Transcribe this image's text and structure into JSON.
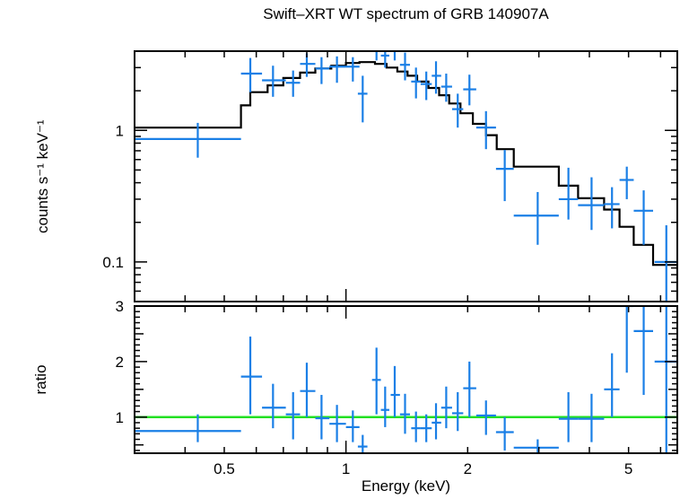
{
  "chart_data": [
    {
      "type": "scatter",
      "panel": "spectrum",
      "title": "Swift–XRT WT spectrum of GRB 140907A",
      "ylabel": "counts s⁻¹ keV⁻¹",
      "xscale": "log",
      "yscale": "log",
      "xlim": [
        0.3,
        6.6
      ],
      "ylim": [
        0.05,
        4.0
      ],
      "ytick_labels": [
        {
          "value": 1,
          "label": "1"
        },
        {
          "value": 0.1,
          "label": "0.1"
        }
      ],
      "colors": {
        "data": "#1a7fe6",
        "model": "#000000"
      },
      "series": [
        {
          "kind": "data",
          "points": [
            {
              "x": 0.43,
              "xlo": 0.3,
              "xhi": 0.55,
              "y": 0.86,
              "ylo": 0.62,
              "yhi": 1.14
            },
            {
              "x": 0.58,
              "xlo": 0.55,
              "xhi": 0.62,
              "y": 2.7,
              "ylo": 1.95,
              "yhi": 3.55
            },
            {
              "x": 0.66,
              "xlo": 0.62,
              "xhi": 0.71,
              "y": 2.4,
              "ylo": 1.8,
              "yhi": 3.1
            },
            {
              "x": 0.74,
              "xlo": 0.71,
              "xhi": 0.77,
              "y": 2.3,
              "ylo": 1.8,
              "yhi": 2.85
            },
            {
              "x": 0.8,
              "xlo": 0.77,
              "xhi": 0.84,
              "y": 3.2,
              "ylo": 2.55,
              "yhi": 3.85
            },
            {
              "x": 0.87,
              "xlo": 0.84,
              "xhi": 0.91,
              "y": 2.95,
              "ylo": 2.25,
              "yhi": 3.6
            },
            {
              "x": 0.95,
              "xlo": 0.91,
              "xhi": 1.0,
              "y": 3.05,
              "ylo": 2.3,
              "yhi": 3.65
            },
            {
              "x": 1.04,
              "xlo": 1.0,
              "xhi": 1.08,
              "y": 3.05,
              "ylo": 2.35,
              "yhi": 3.6
            },
            {
              "x": 1.1,
              "xlo": 1.07,
              "xhi": 1.13,
              "y": 1.9,
              "ylo": 1.15,
              "yhi": 2.6
            },
            {
              "x": 1.19,
              "xlo": 1.16,
              "xhi": 1.22,
              "y": 4.4,
              "ylo": 3.4,
              "yhi": 5.3
            },
            {
              "x": 1.25,
              "xlo": 1.22,
              "xhi": 1.28,
              "y": 3.7,
              "ylo": 3.0,
              "yhi": 4.4
            },
            {
              "x": 1.32,
              "xlo": 1.29,
              "xhi": 1.36,
              "y": 4.1,
              "ylo": 3.4,
              "yhi": 4.8
            },
            {
              "x": 1.4,
              "xlo": 1.36,
              "xhi": 1.44,
              "y": 3.15,
              "ylo": 2.4,
              "yhi": 3.9
            },
            {
              "x": 1.49,
              "xlo": 1.45,
              "xhi": 1.53,
              "y": 2.35,
              "ylo": 1.75,
              "yhi": 3.0
            },
            {
              "x": 1.58,
              "xlo": 1.53,
              "xhi": 1.63,
              "y": 2.25,
              "ylo": 1.7,
              "yhi": 2.8
            },
            {
              "x": 1.67,
              "xlo": 1.63,
              "xhi": 1.72,
              "y": 2.6,
              "ylo": 1.9,
              "yhi": 3.35
            },
            {
              "x": 1.77,
              "xlo": 1.72,
              "xhi": 1.83,
              "y": 2.15,
              "ylo": 1.65,
              "yhi": 2.7
            },
            {
              "x": 1.89,
              "xlo": 1.83,
              "xhi": 1.95,
              "y": 1.45,
              "ylo": 1.05,
              "yhi": 1.9
            },
            {
              "x": 2.02,
              "xlo": 1.95,
              "xhi": 2.1,
              "y": 2.05,
              "ylo": 1.55,
              "yhi": 2.65
            },
            {
              "x": 2.22,
              "xlo": 2.1,
              "xhi": 2.35,
              "y": 1.05,
              "ylo": 0.72,
              "yhi": 1.4
            },
            {
              "x": 2.47,
              "xlo": 2.35,
              "xhi": 2.6,
              "y": 0.51,
              "ylo": 0.29,
              "yhi": 0.71
            },
            {
              "x": 2.98,
              "xlo": 2.6,
              "xhi": 3.36,
              "y": 0.225,
              "ylo": 0.135,
              "yhi": 0.34
            },
            {
              "x": 3.55,
              "xlo": 3.36,
              "xhi": 3.75,
              "y": 0.3,
              "ylo": 0.21,
              "yhi": 0.52
            },
            {
              "x": 4.05,
              "xlo": 3.75,
              "xhi": 4.35,
              "y": 0.27,
              "ylo": 0.175,
              "yhi": 0.44
            },
            {
              "x": 4.55,
              "xlo": 4.35,
              "xhi": 4.75,
              "y": 0.275,
              "ylo": 0.18,
              "yhi": 0.37
            },
            {
              "x": 4.95,
              "xlo": 4.75,
              "xhi": 5.15,
              "y": 0.42,
              "ylo": 0.3,
              "yhi": 0.53
            },
            {
              "x": 5.45,
              "xlo": 5.15,
              "xhi": 5.75,
              "y": 0.245,
              "ylo": 0.135,
              "yhi": 0.35
            },
            {
              "x": 6.2,
              "xlo": 5.8,
              "xhi": 6.6,
              "y": 0.1,
              "ylo": 0.035,
              "yhi": 0.19
            }
          ]
        },
        {
          "kind": "model",
          "steps": [
            {
              "x0": 0.3,
              "x1": 0.55,
              "y": 1.05
            },
            {
              "x0": 0.55,
              "x1": 0.58,
              "y": 1.55
            },
            {
              "x0": 0.58,
              "x1": 0.64,
              "y": 1.95
            },
            {
              "x0": 0.64,
              "x1": 0.7,
              "y": 2.2
            },
            {
              "x0": 0.7,
              "x1": 0.77,
              "y": 2.5
            },
            {
              "x0": 0.77,
              "x1": 0.84,
              "y": 2.75
            },
            {
              "x0": 0.84,
              "x1": 0.92,
              "y": 2.95
            },
            {
              "x0": 0.92,
              "x1": 1.0,
              "y": 3.1
            },
            {
              "x0": 1.0,
              "x1": 1.08,
              "y": 3.25
            },
            {
              "x0": 1.08,
              "x1": 1.18,
              "y": 3.3
            },
            {
              "x0": 1.18,
              "x1": 1.26,
              "y": 3.2
            },
            {
              "x0": 1.26,
              "x1": 1.34,
              "y": 3.0
            },
            {
              "x0": 1.34,
              "x1": 1.42,
              "y": 2.8
            },
            {
              "x0": 1.42,
              "x1": 1.5,
              "y": 2.6
            },
            {
              "x0": 1.5,
              "x1": 1.6,
              "y": 2.35
            },
            {
              "x0": 1.6,
              "x1": 1.7,
              "y": 2.1
            },
            {
              "x0": 1.7,
              "x1": 1.8,
              "y": 1.85
            },
            {
              "x0": 1.8,
              "x1": 1.92,
              "y": 1.6
            },
            {
              "x0": 1.92,
              "x1": 2.06,
              "y": 1.35
            },
            {
              "x0": 2.06,
              "x1": 2.22,
              "y": 1.12
            },
            {
              "x0": 2.22,
              "x1": 2.36,
              "y": 0.92
            },
            {
              "x0": 2.36,
              "x1": 2.6,
              "y": 0.72
            },
            {
              "x0": 2.6,
              "x1": 3.36,
              "y": 0.53
            },
            {
              "x0": 3.36,
              "x1": 3.75,
              "y": 0.38
            },
            {
              "x0": 3.75,
              "x1": 4.35,
              "y": 0.305
            },
            {
              "x0": 4.35,
              "x1": 4.75,
              "y": 0.25
            },
            {
              "x0": 4.75,
              "x1": 5.15,
              "y": 0.185
            },
            {
              "x0": 5.15,
              "x1": 5.75,
              "y": 0.135
            },
            {
              "x0": 5.75,
              "x1": 6.6,
              "y": 0.095
            }
          ]
        }
      ]
    },
    {
      "type": "scatter",
      "panel": "ratio",
      "xlabel": "Energy (keV)",
      "ylabel": "ratio",
      "xscale": "log",
      "yscale": "linear",
      "xlim": [
        0.3,
        6.6
      ],
      "ylim": [
        0.35,
        3.0
      ],
      "xtick_labels": [
        {
          "value": 0.5,
          "label": "0.5"
        },
        {
          "value": 1,
          "label": "1"
        },
        {
          "value": 2,
          "label": "2"
        },
        {
          "value": 5,
          "label": "5"
        }
      ],
      "ytick_labels": [
        {
          "value": 1,
          "label": "1"
        },
        {
          "value": 2,
          "label": "2"
        },
        {
          "value": 3,
          "label": "3"
        }
      ],
      "reference_line": {
        "y": 1.0,
        "color": "#22e022"
      },
      "colors": {
        "data": "#1a7fe6"
      },
      "series": [
        {
          "kind": "data",
          "points": [
            {
              "x": 0.43,
              "xlo": 0.3,
              "xhi": 0.55,
              "y": 0.75,
              "ylo": 0.55,
              "yhi": 1.05
            },
            {
              "x": 0.58,
              "xlo": 0.55,
              "xhi": 0.62,
              "y": 1.73,
              "ylo": 1.05,
              "yhi": 2.45
            },
            {
              "x": 0.66,
              "xlo": 0.62,
              "xhi": 0.71,
              "y": 1.17,
              "ylo": 0.8,
              "yhi": 1.6
            },
            {
              "x": 0.74,
              "xlo": 0.71,
              "xhi": 0.77,
              "y": 1.05,
              "ylo": 0.6,
              "yhi": 1.45
            },
            {
              "x": 0.8,
              "xlo": 0.77,
              "xhi": 0.84,
              "y": 1.47,
              "ylo": 1.0,
              "yhi": 1.98
            },
            {
              "x": 0.87,
              "xlo": 0.84,
              "xhi": 0.91,
              "y": 0.98,
              "ylo": 0.6,
              "yhi": 1.4
            },
            {
              "x": 0.95,
              "xlo": 0.91,
              "xhi": 1.0,
              "y": 0.88,
              "ylo": 0.55,
              "yhi": 1.22
            },
            {
              "x": 1.04,
              "xlo": 1.0,
              "xhi": 1.08,
              "y": 0.82,
              "ylo": 0.55,
              "yhi": 1.12
            },
            {
              "x": 1.1,
              "xlo": 1.07,
              "xhi": 1.13,
              "y": 0.47,
              "ylo": 0.35,
              "yhi": 0.68
            },
            {
              "x": 1.19,
              "xlo": 1.16,
              "xhi": 1.22,
              "y": 1.67,
              "ylo": 1.05,
              "yhi": 2.25
            },
            {
              "x": 1.25,
              "xlo": 1.22,
              "xhi": 1.28,
              "y": 1.13,
              "ylo": 0.82,
              "yhi": 1.55
            },
            {
              "x": 1.32,
              "xlo": 1.29,
              "xhi": 1.36,
              "y": 1.4,
              "ylo": 1.0,
              "yhi": 1.92
            },
            {
              "x": 1.4,
              "xlo": 1.36,
              "xhi": 1.44,
              "y": 1.05,
              "ylo": 0.7,
              "yhi": 1.42
            },
            {
              "x": 1.49,
              "xlo": 1.45,
              "xhi": 1.53,
              "y": 0.8,
              "ylo": 0.55,
              "yhi": 1.1
            },
            {
              "x": 1.58,
              "xlo": 1.53,
              "xhi": 1.63,
              "y": 0.8,
              "ylo": 0.55,
              "yhi": 1.05
            },
            {
              "x": 1.67,
              "xlo": 1.63,
              "xhi": 1.72,
              "y": 0.9,
              "ylo": 0.6,
              "yhi": 1.25
            },
            {
              "x": 1.77,
              "xlo": 1.72,
              "xhi": 1.83,
              "y": 1.17,
              "ylo": 0.8,
              "yhi": 1.55
            },
            {
              "x": 1.89,
              "xlo": 1.83,
              "xhi": 1.95,
              "y": 1.07,
              "ylo": 0.75,
              "yhi": 1.45
            },
            {
              "x": 2.02,
              "xlo": 1.95,
              "xhi": 2.1,
              "y": 1.52,
              "ylo": 1.0,
              "yhi": 2.0
            },
            {
              "x": 2.22,
              "xlo": 2.1,
              "xhi": 2.35,
              "y": 1.03,
              "ylo": 0.68,
              "yhi": 1.3
            },
            {
              "x": 2.47,
              "xlo": 2.35,
              "xhi": 2.6,
              "y": 0.73,
              "ylo": 0.4,
              "yhi": 1.0
            },
            {
              "x": 2.98,
              "xlo": 2.6,
              "xhi": 3.36,
              "y": 0.45,
              "ylo": 0.35,
              "yhi": 0.6
            },
            {
              "x": 3.55,
              "xlo": 3.36,
              "xhi": 3.75,
              "y": 0.97,
              "ylo": 0.55,
              "yhi": 1.45
            },
            {
              "x": 4.05,
              "xlo": 3.75,
              "xhi": 4.35,
              "y": 0.97,
              "ylo": 0.55,
              "yhi": 1.42
            },
            {
              "x": 4.55,
              "xlo": 4.35,
              "xhi": 4.75,
              "y": 1.5,
              "ylo": 1.0,
              "yhi": 2.15
            },
            {
              "x": 4.95,
              "xlo": 4.75,
              "xhi": 5.15,
              "y": 3.0,
              "ylo": 1.8,
              "yhi": 3.0
            },
            {
              "x": 5.45,
              "xlo": 5.15,
              "xhi": 5.75,
              "y": 2.55,
              "ylo": 1.4,
              "yhi": 3.0
            },
            {
              "x": 6.2,
              "xlo": 5.8,
              "xhi": 6.6,
              "y": 2.0,
              "ylo": 0.35,
              "yhi": 3.0
            }
          ]
        }
      ]
    }
  ]
}
